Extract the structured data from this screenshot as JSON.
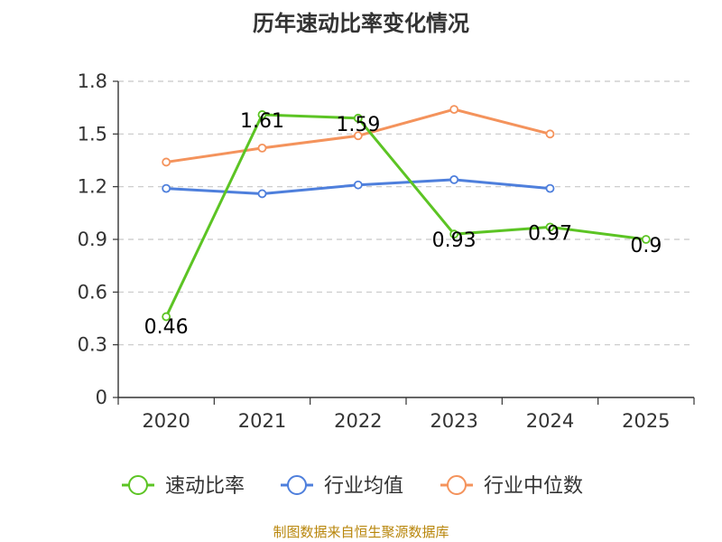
{
  "chart_data": {
    "type": "line",
    "title": "历年速动比率变化情况",
    "categories": [
      "2020",
      "2021",
      "2022",
      "2023",
      "2024",
      "2025"
    ],
    "ylim": [
      0,
      1.8
    ],
    "yticks": [
      "0",
      "0.3",
      "0.6",
      "0.9",
      "1.2",
      "1.5",
      "1.8"
    ],
    "grid": true,
    "legend_position": "bottom",
    "series": [
      {
        "name": "速动比率",
        "color": "#5cc424",
        "values": [
          0.46,
          1.61,
          1.59,
          0.93,
          0.97,
          0.9
        ],
        "labels": [
          "0.46",
          "1.61",
          "1.59",
          "0.93",
          "0.97",
          "0.9"
        ]
      },
      {
        "name": "行业均值",
        "color": "#4e7fdc",
        "values": [
          1.19,
          1.16,
          1.21,
          1.24,
          1.19,
          null
        ]
      },
      {
        "name": "行业中位数",
        "color": "#f4935c",
        "values": [
          1.34,
          1.42,
          1.49,
          1.64,
          1.5,
          null
        ]
      }
    ]
  },
  "footer": "制图数据来自恒生聚源数据库"
}
